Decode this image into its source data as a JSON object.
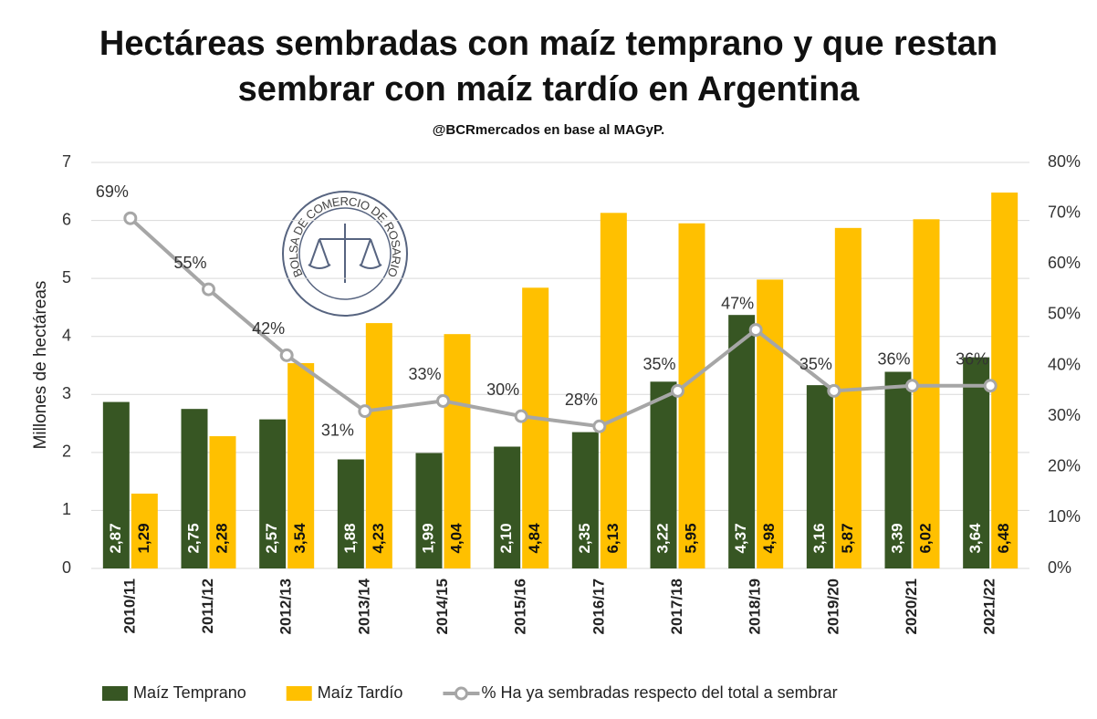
{
  "chart_data": {
    "type": "bar",
    "title": "Hectáreas sembradas con maíz temprano y que restan",
    "title_line2": "sembrar con maíz tardío en Argentina",
    "subtitle": "@BCRmercados  en base al MAGyP.",
    "logo_text": "BOLSA DE COMERCIO DE ROSARIO",
    "y_label": "Millones de hectáreas",
    "categories": [
      "2010/11",
      "2011/12",
      "2012/13",
      "2013/14",
      "2014/15",
      "2015/16",
      "2016/17",
      "2017/18",
      "2018/19",
      "2019/20",
      "2020/21",
      "2021/22"
    ],
    "series": [
      {
        "name": "Maíz Temprano",
        "color": "#375623",
        "label_color": "#ffffff",
        "values": [
          2.87,
          2.75,
          2.57,
          1.88,
          1.99,
          2.1,
          2.35,
          3.22,
          4.37,
          3.16,
          3.39,
          3.64
        ],
        "value_labels": [
          "2,87",
          "2,75",
          "2,57",
          "1,88",
          "1,99",
          "2,10",
          "2,35",
          "3,22",
          "4,37",
          "3,16",
          "3,39",
          "3,64"
        ]
      },
      {
        "name": "Maíz Tardío",
        "color": "#ffc000",
        "label_color": "#111111",
        "values": [
          1.29,
          2.28,
          3.54,
          4.23,
          4.04,
          4.84,
          6.13,
          5.95,
          4.98,
          5.87,
          6.02,
          6.48
        ],
        "value_labels": [
          "1,29",
          "2,28",
          "3,54",
          "4,23",
          "4,04",
          "4,84",
          "6,13",
          "5,95",
          "4,98",
          "5,87",
          "6,02",
          "6,48"
        ]
      },
      {
        "name": "% Ha ya sembradas respecto del total a sembrar",
        "color": "#a6a6a6",
        "type": "line",
        "axis": "y2",
        "values": [
          69,
          55,
          42,
          31,
          33,
          30,
          28,
          35,
          47,
          35,
          36,
          36
        ],
        "value_labels": [
          "69%",
          "55%",
          "42%",
          "31%",
          "33%",
          "30%",
          "28%",
          "35%",
          "47%",
          "35%",
          "36%",
          "36%"
        ]
      }
    ],
    "ylim": [
      0,
      7
    ],
    "yticks": [
      0,
      1,
      2,
      3,
      4,
      5,
      6,
      7
    ],
    "y2lim": [
      0,
      80
    ],
    "y2ticks": [
      {
        "value": 0,
        "label": "0%"
      },
      {
        "value": 10,
        "label": "10%"
      },
      {
        "value": 20,
        "label": "20%"
      },
      {
        "value": 30,
        "label": "30%"
      },
      {
        "value": 40,
        "label": "40%"
      },
      {
        "value": 50,
        "label": "50%"
      },
      {
        "value": 60,
        "label": "60%"
      },
      {
        "value": 70,
        "label": "70%"
      },
      {
        "value": 80,
        "label": "80%"
      }
    ],
    "grid": true,
    "legend": "bottom"
  }
}
